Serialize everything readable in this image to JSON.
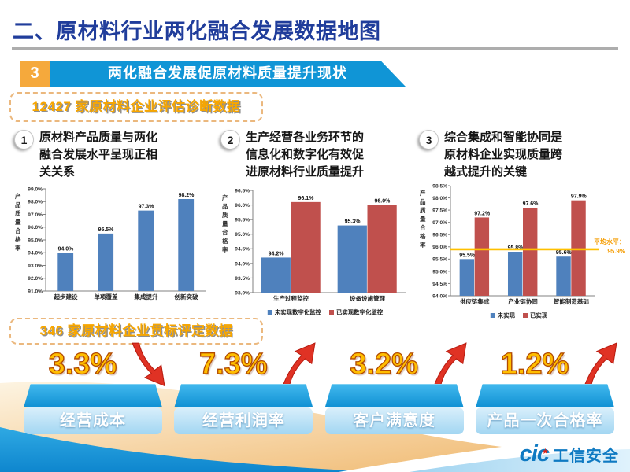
{
  "slide": {
    "title": "二、原材料行业两化融合发展数据地图",
    "section_number": "3",
    "section_title": "两化融合发展促原材料质量提升现状",
    "box1_label": "12427 家原材料企业评估诊断数据",
    "box2_label": "346 家原材料企业贯标评定数据"
  },
  "points": [
    {
      "num": "1",
      "text": "原材料产品质量与两化融合发展水平呈现正相关关系"
    },
    {
      "num": "2",
      "text": "生产经营各业务环节的信息化和数字化有效促进原材料行业质量提升"
    },
    {
      "num": "3",
      "text": "综合集成和智能协同是原材料企业实现质量跨越式提升的关键"
    }
  ],
  "chart_data": [
    {
      "type": "bar",
      "ylabel": "产品质量合格率",
      "categories": [
        "起步建设",
        "单项覆盖",
        "集成提升",
        "创新突破"
      ],
      "values": [
        94.0,
        95.5,
        97.3,
        98.2
      ],
      "bar_color": "#4F81BD",
      "ylim": [
        91.0,
        99.0
      ],
      "ytick_step": 1.0,
      "grid": false,
      "legend_position": "none"
    },
    {
      "type": "bar",
      "ylabel": "产品质量合格率",
      "categories": [
        "生产过程监控",
        "设备设施管理"
      ],
      "series": [
        {
          "name": "未实现数字化监控",
          "color": "#4F81BD",
          "values": [
            94.2,
            95.3
          ]
        },
        {
          "name": "已实现数字化监控",
          "color": "#C0504D",
          "values": [
            96.1,
            96.0
          ]
        }
      ],
      "ylim": [
        93.0,
        96.5
      ],
      "ytick_step": 0.5,
      "grid": false,
      "legend_position": "bottom"
    },
    {
      "type": "bar",
      "ylabel": "产品质量合格率",
      "categories": [
        "供应链集成",
        "产业链协同",
        "智能制造基础"
      ],
      "series": [
        {
          "name": "未实现",
          "color": "#4F81BD",
          "values": [
            95.5,
            95.8,
            95.6
          ]
        },
        {
          "name": "已实现",
          "color": "#C0504D",
          "values": [
            97.2,
            97.6,
            97.9
          ]
        }
      ],
      "ylim": [
        94.0,
        98.5
      ],
      "ytick_step": 0.5,
      "grid": false,
      "legend_position": "bottom",
      "right_pad": 40,
      "refline": {
        "value": 95.9,
        "color": "#FFC000",
        "label_lines": [
          "平均水平：",
          "95.9%"
        ],
        "label_color": "#F59C00"
      }
    }
  ],
  "metrics": [
    {
      "value": "3.3%",
      "label": "经营成本",
      "direction": "down"
    },
    {
      "value": "7.3%",
      "label": "经营利润率",
      "direction": "up"
    },
    {
      "value": "3.2%",
      "label": "客户满意度",
      "direction": "up"
    },
    {
      "value": "1.2%",
      "label": "产品一次合格率",
      "direction": "up"
    }
  ],
  "footer": {
    "logo_cic": "cic",
    "logo_name": "工信安全"
  },
  "colors": {
    "title_blue": "#203D9B",
    "banner_blue": "#1095D6",
    "badge_orange": "#F5A93C",
    "gold_text": "#F7A600",
    "bar_blue": "#4F81BD",
    "bar_red": "#C0504D",
    "refline_orange": "#FFC000",
    "arrow_red": "#E03224",
    "podium_blue": "#1193D6",
    "podium_light_blue": "#A2D6F2"
  }
}
